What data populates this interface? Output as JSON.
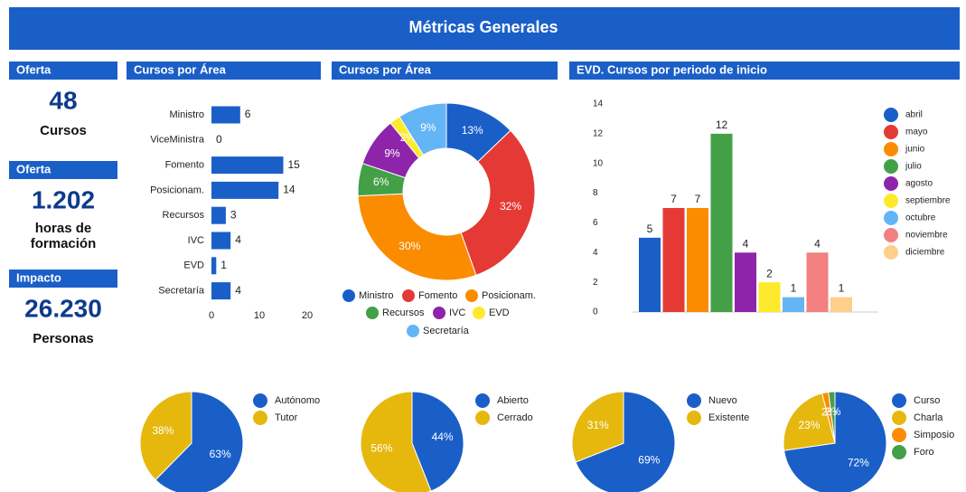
{
  "header": {
    "title": "Métricas Generales"
  },
  "kpis": [
    {
      "title": "Oferta",
      "value": "48",
      "label": "Cursos"
    },
    {
      "title": "Oferta",
      "value": "1.202",
      "label": [
        "horas de",
        "formación"
      ]
    },
    {
      "title": "Impacto",
      "value": "26.230",
      "label": "Personas"
    }
  ],
  "chart_data": [
    {
      "type": "hbar",
      "title": "Cursos por Área",
      "categories": [
        "Ministro",
        "ViceMinistra",
        "Fomento",
        "Posicionam.",
        "Recursos",
        "IVC",
        "EVD",
        "Secretaría"
      ],
      "values": [
        6,
        0,
        15,
        14,
        3,
        4,
        1,
        4
      ],
      "color": "#1a5fc8",
      "xlim": [
        0,
        20
      ],
      "xticks": [
        0,
        10,
        20
      ]
    },
    {
      "type": "donut",
      "title": "Cursos por Área",
      "categories": [
        "Ministro",
        "Fomento",
        "Posicionam.",
        "Recursos",
        "IVC",
        "EVD",
        "Secretaría"
      ],
      "values": [
        13,
        32,
        30,
        6,
        9,
        2,
        9
      ],
      "value_labels": [
        "13%",
        "32%",
        "30%",
        "6%",
        "9%",
        "2%",
        "9%"
      ],
      "colors": [
        "#1a5fc8",
        "#e53935",
        "#fb8c00",
        "#43a047",
        "#8e24aa",
        "#fdea2c",
        "#64b5f6"
      ]
    },
    {
      "type": "bar",
      "title": "EVD. Cursos por periodo de inicio",
      "categories": [
        "abril",
        "mayo",
        "junio",
        "julio",
        "agosto",
        "septiembre",
        "octubre",
        "noviembre",
        "diciembre"
      ],
      "values": [
        5,
        7,
        7,
        12,
        4,
        2,
        1,
        4,
        1
      ],
      "colors": [
        "#1a5fc8",
        "#e53935",
        "#fb8c00",
        "#43a047",
        "#8e24aa",
        "#fdea2c",
        "#64b5f6",
        "#f28080",
        "#fdcf8a"
      ],
      "ylim": [
        0,
        14
      ],
      "yticks": [
        0,
        2,
        4,
        6,
        8,
        10,
        12,
        14
      ]
    },
    {
      "type": "pie",
      "categories": [
        "Autónomo",
        "Tutor"
      ],
      "values": [
        63,
        38
      ],
      "value_labels": [
        "63%",
        "38%"
      ],
      "colors": [
        "#1a5fc8",
        "#e6b80e"
      ]
    },
    {
      "type": "pie",
      "categories": [
        "Abierto",
        "Cerrado"
      ],
      "values": [
        44,
        56
      ],
      "value_labels": [
        "44%",
        "56%"
      ],
      "colors": [
        "#1a5fc8",
        "#e6b80e"
      ]
    },
    {
      "type": "pie",
      "categories": [
        "Nuevo",
        "Existente"
      ],
      "values": [
        69,
        31
      ],
      "value_labels": [
        "69%",
        "31%"
      ],
      "colors": [
        "#1a5fc8",
        "#e6b80e"
      ]
    },
    {
      "type": "pie",
      "categories": [
        "Curso",
        "Charla",
        "Simposio",
        "Foro"
      ],
      "values": [
        72,
        23,
        2,
        2
      ],
      "value_labels": [
        "72%",
        "23%",
        "2%",
        "2%"
      ],
      "colors": [
        "#1a5fc8",
        "#e6b80e",
        "#fb8c00",
        "#43a047"
      ]
    }
  ]
}
